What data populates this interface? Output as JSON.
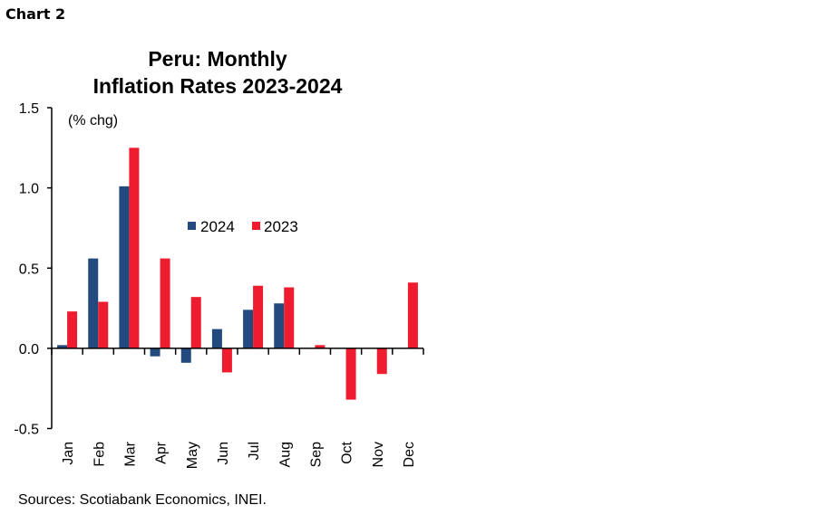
{
  "chart_label": "Chart 2",
  "chart_data": {
    "type": "bar",
    "title_lines": [
      "Peru: Monthly",
      "Inflation Rates 2023-2024"
    ],
    "ylabel": "(% chg)",
    "xlabel": "",
    "ylim": [
      -0.5,
      1.5
    ],
    "yticks": [
      "1.5",
      "1.0",
      "0.5",
      "0.0",
      "-0.5"
    ],
    "ytick_values": [
      1.5,
      1.0,
      0.5,
      0.0,
      -0.5
    ],
    "categories": [
      "Jan",
      "Feb",
      "Mar",
      "Apr",
      "May",
      "Jun",
      "Jul",
      "Aug",
      "Sep",
      "Oct",
      "Nov",
      "Dec"
    ],
    "series": [
      {
        "name": "2024",
        "color": "#234A7E",
        "values": [
          0.02,
          0.56,
          1.01,
          -0.05,
          -0.09,
          0.12,
          0.24,
          0.28,
          null,
          null,
          null,
          null
        ]
      },
      {
        "name": "2023",
        "color": "#EE1C2E",
        "values": [
          0.23,
          0.29,
          1.25,
          0.56,
          0.32,
          -0.15,
          0.39,
          0.38,
          0.02,
          -0.32,
          -0.16,
          0.41
        ]
      }
    ],
    "legend_position": "center",
    "grid": false
  },
  "source": "Sources: Scotiabank Economics, INEI."
}
